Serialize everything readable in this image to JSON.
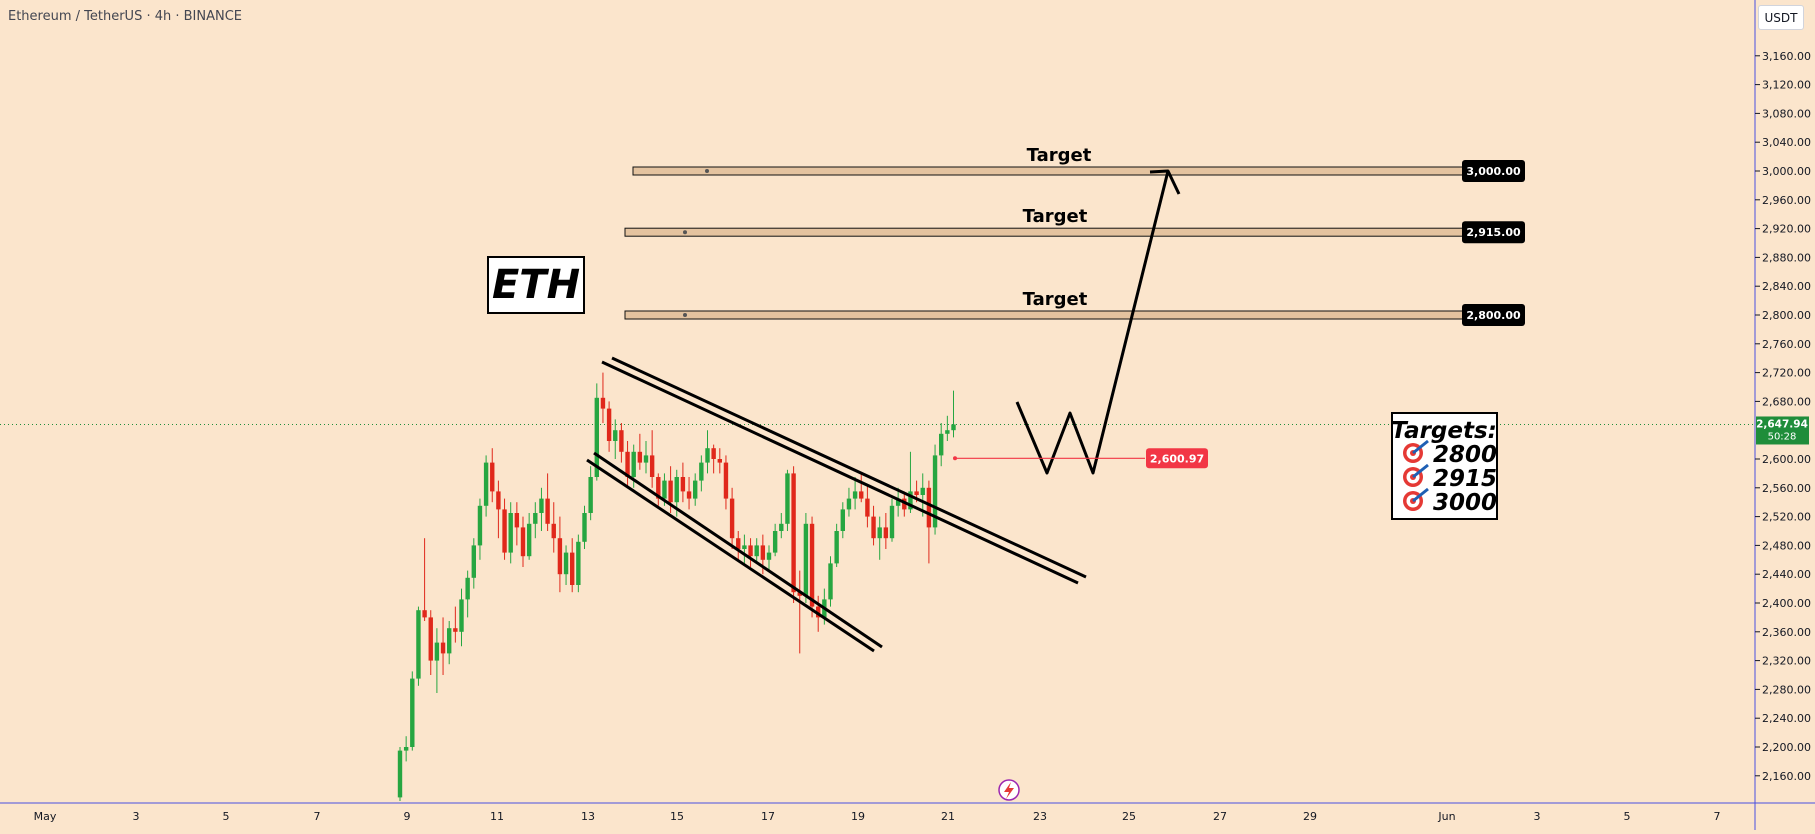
{
  "header": {
    "symbol_title": "Ethereum / TetherUS · 4h · BINANCE"
  },
  "toolbar": {
    "currency_label": "USDT"
  },
  "price_axis": {
    "ticks": [
      "3,160.00",
      "3,120.00",
      "3,080.00",
      "3,040.00",
      "3,000.00",
      "2,960.00",
      "2,920.00",
      "2,880.00",
      "2,840.00",
      "2,800.00",
      "2,760.00",
      "2,720.00",
      "2,680.00",
      "2,600.00",
      "2,560.00",
      "2,520.00",
      "2,480.00",
      "2,440.00",
      "2,400.00",
      "2,360.00",
      "2,320.00",
      "2,280.00",
      "2,240.00",
      "2,200.00",
      "2,160.00"
    ],
    "current_price": "2,647.94",
    "countdown": "50:28"
  },
  "time_axis": {
    "labels": [
      "May",
      "3",
      "5",
      "7",
      "9",
      "11",
      "13",
      "15",
      "17",
      "19",
      "21",
      "23",
      "25",
      "27",
      "29",
      "Jun",
      "3",
      "5",
      "7"
    ]
  },
  "annotations": {
    "eth_label": "ETH",
    "target_label": "Target",
    "targets_box": {
      "title": "Targets:",
      "items": [
        "2800",
        "2915",
        "3000"
      ]
    },
    "target_levels": [
      "2,800.00",
      "2,915.00",
      "3,000.00"
    ],
    "entry_price": "2,600.97"
  },
  "colors": {
    "background": "#fbe5cc",
    "up": "#26a641",
    "down": "#e0281b",
    "price_badge": "#1f8d3a",
    "entry_badge": "#f23645",
    "level_badge": "#000000"
  },
  "chart_data": {
    "type": "candlestick",
    "symbol": "Ethereum / TetherUS",
    "interval": "4h",
    "exchange": "BINANCE",
    "x_ticks": [
      "May",
      "3",
      "5",
      "7",
      "9",
      "11",
      "13",
      "15",
      "17",
      "19",
      "21",
      "23",
      "25",
      "27",
      "29",
      "Jun",
      "3",
      "5",
      "7"
    ],
    "ylim": [
      2130,
      3190
    ],
    "grid": false,
    "candles_ohlc": [
      [
        2130,
        2200,
        2125,
        2195
      ],
      [
        2195,
        2215,
        2180,
        2200
      ],
      [
        2200,
        2305,
        2195,
        2295
      ],
      [
        2295,
        2395,
        2285,
        2390
      ],
      [
        2390,
        2490,
        2375,
        2380
      ],
      [
        2380,
        2390,
        2300,
        2320
      ],
      [
        2320,
        2365,
        2275,
        2345
      ],
      [
        2345,
        2380,
        2300,
        2330
      ],
      [
        2330,
        2375,
        2315,
        2365
      ],
      [
        2365,
        2395,
        2345,
        2360
      ],
      [
        2360,
        2420,
        2340,
        2405
      ],
      [
        2405,
        2445,
        2380,
        2435
      ],
      [
        2435,
        2490,
        2420,
        2480
      ],
      [
        2480,
        2545,
        2460,
        2535
      ],
      [
        2535,
        2605,
        2520,
        2595
      ],
      [
        2595,
        2615,
        2540,
        2555
      ],
      [
        2555,
        2570,
        2490,
        2530
      ],
      [
        2530,
        2545,
        2460,
        2470
      ],
      [
        2470,
        2540,
        2455,
        2525
      ],
      [
        2525,
        2540,
        2480,
        2505
      ],
      [
        2505,
        2520,
        2450,
        2465
      ],
      [
        2465,
        2525,
        2460,
        2510
      ],
      [
        2510,
        2540,
        2490,
        2525
      ],
      [
        2525,
        2560,
        2500,
        2545
      ],
      [
        2545,
        2580,
        2500,
        2510
      ],
      [
        2510,
        2540,
        2470,
        2490
      ],
      [
        2490,
        2520,
        2415,
        2440
      ],
      [
        2440,
        2480,
        2425,
        2470
      ],
      [
        2470,
        2490,
        2415,
        2425
      ],
      [
        2425,
        2495,
        2415,
        2485
      ],
      [
        2485,
        2535,
        2475,
        2525
      ],
      [
        2525,
        2590,
        2515,
        2575
      ],
      [
        2575,
        2705,
        2570,
        2685
      ],
      [
        2685,
        2720,
        2650,
        2670
      ],
      [
        2670,
        2680,
        2610,
        2625
      ],
      [
        2625,
        2655,
        2600,
        2640
      ],
      [
        2640,
        2650,
        2595,
        2610
      ],
      [
        2610,
        2625,
        2560,
        2575
      ],
      [
        2575,
        2620,
        2560,
        2610
      ],
      [
        2610,
        2635,
        2585,
        2595
      ],
      [
        2595,
        2625,
        2580,
        2605
      ],
      [
        2605,
        2640,
        2560,
        2575
      ],
      [
        2575,
        2580,
        2535,
        2545
      ],
      [
        2545,
        2580,
        2535,
        2570
      ],
      [
        2570,
        2590,
        2525,
        2540
      ],
      [
        2540,
        2585,
        2520,
        2575
      ],
      [
        2575,
        2595,
        2540,
        2555
      ],
      [
        2555,
        2575,
        2530,
        2545
      ],
      [
        2545,
        2580,
        2535,
        2570
      ],
      [
        2570,
        2605,
        2555,
        2595
      ],
      [
        2595,
        2640,
        2580,
        2615
      ],
      [
        2615,
        2620,
        2580,
        2600
      ],
      [
        2600,
        2615,
        2580,
        2595
      ],
      [
        2595,
        2605,
        2530,
        2545
      ],
      [
        2545,
        2560,
        2475,
        2490
      ],
      [
        2490,
        2500,
        2460,
        2475
      ],
      [
        2475,
        2495,
        2455,
        2480
      ],
      [
        2480,
        2490,
        2450,
        2465
      ],
      [
        2465,
        2490,
        2455,
        2480
      ],
      [
        2480,
        2495,
        2440,
        2460
      ],
      [
        2460,
        2480,
        2445,
        2470
      ],
      [
        2470,
        2510,
        2465,
        2500
      ],
      [
        2500,
        2525,
        2490,
        2510
      ],
      [
        2510,
        2585,
        2500,
        2580
      ],
      [
        2580,
        2590,
        2400,
        2415
      ],
      [
        2415,
        2445,
        2330,
        2410
      ],
      [
        2410,
        2525,
        2400,
        2510
      ],
      [
        2510,
        2520,
        2380,
        2395
      ],
      [
        2395,
        2410,
        2360,
        2380
      ],
      [
        2380,
        2420,
        2370,
        2405
      ],
      [
        2405,
        2465,
        2395,
        2455
      ],
      [
        2455,
        2510,
        2450,
        2500
      ],
      [
        2500,
        2540,
        2490,
        2530
      ],
      [
        2530,
        2560,
        2520,
        2545
      ],
      [
        2545,
        2575,
        2530,
        2555
      ],
      [
        2555,
        2580,
        2540,
        2545
      ],
      [
        2545,
        2565,
        2505,
        2520
      ],
      [
        2520,
        2535,
        2480,
        2490
      ],
      [
        2490,
        2520,
        2460,
        2505
      ],
      [
        2505,
        2525,
        2475,
        2490
      ],
      [
        2490,
        2545,
        2485,
        2535
      ],
      [
        2535,
        2560,
        2520,
        2545
      ],
      [
        2545,
        2555,
        2520,
        2530
      ],
      [
        2530,
        2610,
        2525,
        2555
      ],
      [
        2555,
        2570,
        2540,
        2550
      ],
      [
        2550,
        2580,
        2520,
        2560
      ],
      [
        2560,
        2570,
        2455,
        2505
      ],
      [
        2505,
        2620,
        2495,
        2605
      ],
      [
        2605,
        2650,
        2590,
        2635
      ],
      [
        2635,
        2660,
        2625,
        2640
      ],
      [
        2640,
        2695,
        2630,
        2648
      ]
    ],
    "levels": [
      2800,
      2915,
      3000
    ],
    "entry": 2600.97,
    "last_price": 2647.94
  }
}
